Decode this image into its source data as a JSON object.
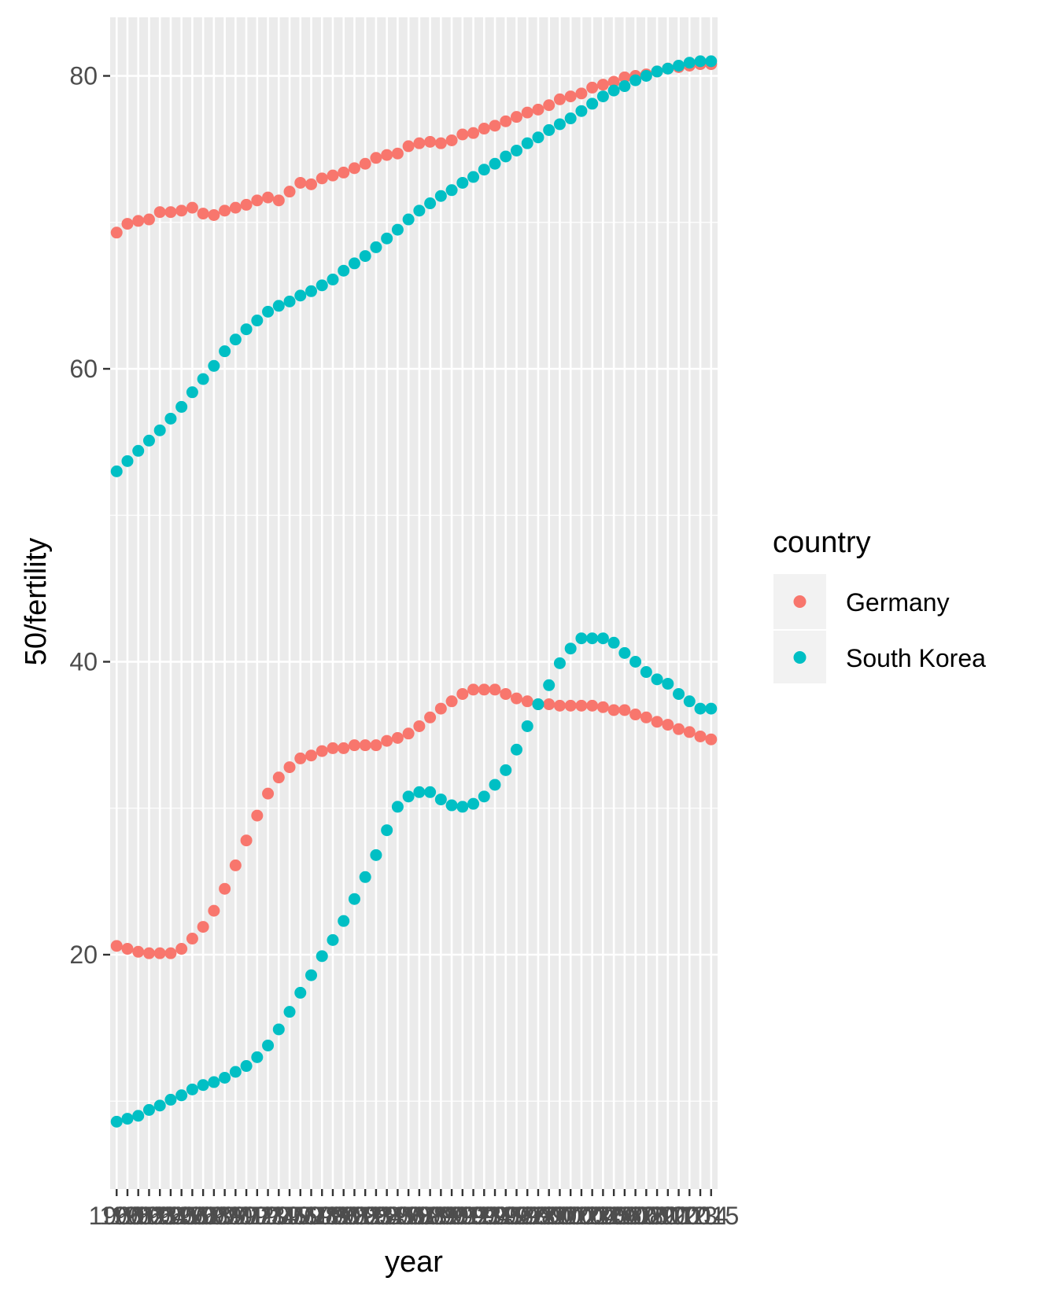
{
  "chart_data": {
    "type": "scatter",
    "xlabel": "year",
    "ylabel": "50/fertility",
    "ylim": [
      4,
      84
    ],
    "yticks": [
      20,
      40,
      60,
      80
    ],
    "x": [
      1960,
      1961,
      1962,
      1963,
      1964,
      1965,
      1966,
      1967,
      1968,
      1969,
      1970,
      1971,
      1972,
      1973,
      1974,
      1975,
      1976,
      1977,
      1978,
      1979,
      1980,
      1981,
      1982,
      1983,
      1984,
      1985,
      1986,
      1987,
      1988,
      1989,
      1990,
      1991,
      1992,
      1993,
      1994,
      1995,
      1996,
      1997,
      1998,
      1999,
      2000,
      2001,
      2002,
      2003,
      2004,
      2005,
      2006,
      2007,
      2008,
      2009,
      2010,
      2011,
      2012,
      2013,
      2014,
      2015
    ],
    "x_tick_labels": [
      "1960",
      "1961",
      "1962",
      "1963",
      "1964",
      "1965",
      "1966",
      "1967",
      "1968",
      "1969",
      "1970",
      "1971",
      "1972",
      "1973",
      "1974",
      "1975",
      "1976",
      "1977",
      "1978",
      "1979",
      "1980",
      "1981",
      "1982",
      "1983",
      "1984",
      "1985",
      "1986",
      "1987",
      "1988",
      "1989",
      "1990",
      "1991",
      "1992",
      "1993",
      "1994",
      "1995",
      "1996",
      "1997",
      "1998",
      "1999",
      "2000",
      "2001",
      "2002",
      "2003",
      "2004",
      "2005",
      "2006",
      "2007",
      "2008",
      "2009",
      "2010",
      "2011",
      "2012",
      "2013",
      "2014",
      "2015"
    ],
    "legend": {
      "title": "country",
      "position": "right"
    },
    "series": [
      {
        "name": "Germany",
        "color": "#F8766D",
        "points": [
          [
            [
              1960,
              69.3
            ],
            [
              1961,
              69.9
            ],
            [
              1962,
              70.1
            ],
            [
              1963,
              70.2
            ],
            [
              1964,
              70.7
            ],
            [
              1965,
              70.7
            ],
            [
              1966,
              70.8
            ],
            [
              1967,
              71.0
            ],
            [
              1968,
              70.6
            ],
            [
              1969,
              70.5
            ],
            [
              1970,
              70.8
            ],
            [
              1971,
              71.0
            ],
            [
              1972,
              71.2
            ],
            [
              1973,
              71.5
            ],
            [
              1974,
              71.7
            ],
            [
              1975,
              71.5
            ],
            [
              1976,
              72.1
            ],
            [
              1977,
              72.7
            ],
            [
              1978,
              72.6
            ],
            [
              1979,
              73.0
            ],
            [
              1980,
              73.2
            ],
            [
              1981,
              73.4
            ],
            [
              1982,
              73.7
            ],
            [
              1983,
              74.0
            ],
            [
              1984,
              74.4
            ],
            [
              1985,
              74.6
            ],
            [
              1986,
              74.7
            ],
            [
              1987,
              75.2
            ],
            [
              1988,
              75.4
            ],
            [
              1989,
              75.5
            ],
            [
              1990,
              75.4
            ],
            [
              1991,
              75.6
            ],
            [
              1992,
              76.0
            ],
            [
              1993,
              76.1
            ],
            [
              1994,
              76.4
            ],
            [
              1995,
              76.6
            ],
            [
              1996,
              76.9
            ],
            [
              1997,
              77.2
            ],
            [
              1998,
              77.5
            ],
            [
              1999,
              77.7
            ],
            [
              2000,
              78.0
            ],
            [
              2001,
              78.4
            ],
            [
              2002,
              78.6
            ],
            [
              2003,
              78.8
            ],
            [
              2004,
              79.2
            ],
            [
              2005,
              79.4
            ],
            [
              2006,
              79.6
            ],
            [
              2007,
              79.9
            ],
            [
              2008,
              80.0
            ],
            [
              2009,
              80.1
            ],
            [
              2010,
              80.3
            ],
            [
              2011,
              80.5
            ],
            [
              2012,
              80.6
            ],
            [
              2013,
              80.7
            ],
            [
              2014,
              80.8
            ],
            [
              2015,
              80.8
            ]
          ],
          [
            [
              1960,
              20.6
            ],
            [
              1961,
              20.4
            ],
            [
              1962,
              20.2
            ],
            [
              1963,
              20.1
            ],
            [
              1964,
              20.1
            ],
            [
              1965,
              20.1
            ],
            [
              1966,
              20.4
            ],
            [
              1967,
              21.1
            ],
            [
              1968,
              21.9
            ],
            [
              1969,
              23.0
            ],
            [
              1970,
              24.5
            ],
            [
              1971,
              26.1
            ],
            [
              1972,
              27.8
            ],
            [
              1973,
              29.5
            ],
            [
              1974,
              31.0
            ],
            [
              1975,
              32.1
            ],
            [
              1976,
              32.8
            ],
            [
              1977,
              33.4
            ],
            [
              1978,
              33.6
            ],
            [
              1979,
              33.9
            ],
            [
              1980,
              34.1
            ],
            [
              1981,
              34.1
            ],
            [
              1982,
              34.3
            ],
            [
              1983,
              34.3
            ],
            [
              1984,
              34.3
            ],
            [
              1985,
              34.6
            ],
            [
              1986,
              34.8
            ],
            [
              1987,
              35.1
            ],
            [
              1988,
              35.6
            ],
            [
              1989,
              36.2
            ],
            [
              1990,
              36.8
            ],
            [
              1991,
              37.3
            ],
            [
              1992,
              37.8
            ],
            [
              1993,
              38.1
            ],
            [
              1994,
              38.1
            ],
            [
              1995,
              38.1
            ],
            [
              1996,
              37.8
            ],
            [
              1997,
              37.5
            ],
            [
              1998,
              37.3
            ],
            [
              1999,
              37.1
            ],
            [
              2000,
              37.1
            ],
            [
              2001,
              37.0
            ],
            [
              2002,
              37.0
            ],
            [
              2003,
              37.0
            ],
            [
              2004,
              37.0
            ],
            [
              2005,
              36.9
            ],
            [
              2006,
              36.7
            ],
            [
              2007,
              36.7
            ],
            [
              2008,
              36.4
            ],
            [
              2009,
              36.2
            ],
            [
              2010,
              35.9
            ],
            [
              2011,
              35.7
            ],
            [
              2012,
              35.4
            ],
            [
              2013,
              35.2
            ],
            [
              2014,
              34.9
            ],
            [
              2015,
              34.7
            ]
          ]
        ]
      },
      {
        "name": "South Korea",
        "color": "#00BFC4",
        "points": [
          [
            [
              1960,
              53.0
            ],
            [
              1961,
              53.7
            ],
            [
              1962,
              54.4
            ],
            [
              1963,
              55.1
            ],
            [
              1964,
              55.8
            ],
            [
              1965,
              56.6
            ],
            [
              1966,
              57.4
            ],
            [
              1967,
              58.4
            ],
            [
              1968,
              59.3
            ],
            [
              1969,
              60.2
            ],
            [
              1970,
              61.2
            ],
            [
              1971,
              62.0
            ],
            [
              1972,
              62.7
            ],
            [
              1973,
              63.3
            ],
            [
              1974,
              63.9
            ],
            [
              1975,
              64.3
            ],
            [
              1976,
              64.6
            ],
            [
              1977,
              65.0
            ],
            [
              1978,
              65.3
            ],
            [
              1979,
              65.7
            ],
            [
              1980,
              66.1
            ],
            [
              1981,
              66.7
            ],
            [
              1982,
              67.2
            ],
            [
              1983,
              67.7
            ],
            [
              1984,
              68.3
            ],
            [
              1985,
              68.9
            ],
            [
              1986,
              69.5
            ],
            [
              1987,
              70.2
            ],
            [
              1988,
              70.8
            ],
            [
              1989,
              71.3
            ],
            [
              1990,
              71.8
            ],
            [
              1991,
              72.2
            ],
            [
              1992,
              72.7
            ],
            [
              1993,
              73.1
            ],
            [
              1994,
              73.6
            ],
            [
              1995,
              74.0
            ],
            [
              1996,
              74.5
            ],
            [
              1997,
              74.9
            ],
            [
              1998,
              75.4
            ],
            [
              1999,
              75.8
            ],
            [
              2000,
              76.3
            ],
            [
              2001,
              76.7
            ],
            [
              2002,
              77.1
            ],
            [
              2003,
              77.6
            ],
            [
              2004,
              78.1
            ],
            [
              2005,
              78.6
            ],
            [
              2006,
              79.0
            ],
            [
              2007,
              79.3
            ],
            [
              2008,
              79.7
            ],
            [
              2009,
              80.0
            ],
            [
              2010,
              80.3
            ],
            [
              2011,
              80.5
            ],
            [
              2012,
              80.7
            ],
            [
              2013,
              80.9
            ],
            [
              2014,
              81.0
            ],
            [
              2015,
              81.0
            ]
          ],
          [
            [
              1960,
              8.6
            ],
            [
              1961,
              8.8
            ],
            [
              1962,
              9.0
            ],
            [
              1963,
              9.4
            ],
            [
              1964,
              9.7
            ],
            [
              1965,
              10.1
            ],
            [
              1966,
              10.4
            ],
            [
              1967,
              10.8
            ],
            [
              1968,
              11.1
            ],
            [
              1969,
              11.3
            ],
            [
              1970,
              11.6
            ],
            [
              1971,
              12.0
            ],
            [
              1972,
              12.4
            ],
            [
              1973,
              13.0
            ],
            [
              1974,
              13.8
            ],
            [
              1975,
              14.9
            ],
            [
              1976,
              16.1
            ],
            [
              1977,
              17.4
            ],
            [
              1978,
              18.6
            ],
            [
              1979,
              19.9
            ],
            [
              1980,
              21.0
            ],
            [
              1981,
              22.3
            ],
            [
              1982,
              23.8
            ],
            [
              1983,
              25.3
            ],
            [
              1984,
              26.8
            ],
            [
              1985,
              28.5
            ],
            [
              1986,
              30.1
            ],
            [
              1987,
              30.8
            ],
            [
              1988,
              31.1
            ],
            [
              1989,
              31.1
            ],
            [
              1990,
              30.6
            ],
            [
              1991,
              30.2
            ],
            [
              1992,
              30.1
            ],
            [
              1993,
              30.3
            ],
            [
              1994,
              30.8
            ],
            [
              1995,
              31.6
            ],
            [
              1996,
              32.6
            ],
            [
              1997,
              34.0
            ],
            [
              1998,
              35.6
            ],
            [
              1999,
              37.1
            ],
            [
              2000,
              38.4
            ],
            [
              2001,
              39.9
            ],
            [
              2002,
              40.9
            ],
            [
              2003,
              41.6
            ],
            [
              2004,
              41.6
            ],
            [
              2005,
              41.6
            ],
            [
              2006,
              41.3
            ],
            [
              2007,
              40.6
            ],
            [
              2008,
              40.0
            ],
            [
              2009,
              39.3
            ],
            [
              2010,
              38.8
            ],
            [
              2011,
              38.5
            ],
            [
              2012,
              37.8
            ],
            [
              2013,
              37.3
            ],
            [
              2014,
              36.8
            ],
            [
              2015,
              36.8
            ]
          ]
        ]
      }
    ]
  }
}
